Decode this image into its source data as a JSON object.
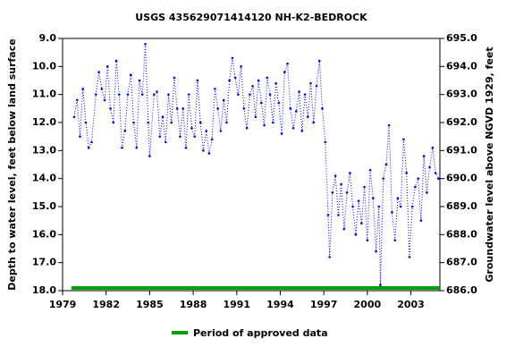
{
  "chart_data": {
    "type": "scatter",
    "title": "USGS 435629071414120 NH-K2-BEDROCK",
    "y_label": "Depth to water level, feet below land surface",
    "y2_label": "Groundwater level above NGVD 1929, feet",
    "xlim": [
      1979,
      2005
    ],
    "xticks": [
      1979,
      1982,
      1985,
      1988,
      1991,
      1994,
      1997,
      2000,
      2003
    ],
    "ylim": [
      18,
      9
    ],
    "yticks": [
      {
        "value": 9,
        "label": "9.0"
      },
      {
        "value": 10,
        "label": "10.0"
      },
      {
        "value": 11,
        "label": "11.0"
      },
      {
        "value": 12,
        "label": "12.0"
      },
      {
        "value": 13,
        "label": "13.0"
      },
      {
        "value": 14,
        "label": "14.0"
      },
      {
        "value": 15,
        "label": "15.0"
      },
      {
        "value": 16,
        "label": "16.0"
      },
      {
        "value": 17,
        "label": "17.0"
      },
      {
        "value": 18,
        "label": "18.0"
      }
    ],
    "y2lim": [
      686,
      695
    ],
    "y2ticks": [
      {
        "value": 695,
        "label": "695.0"
      },
      {
        "value": 694,
        "label": "694.0"
      },
      {
        "value": 693,
        "label": "693.0"
      },
      {
        "value": 692,
        "label": "692.0"
      },
      {
        "value": 691,
        "label": "691.0"
      },
      {
        "value": 690,
        "label": "690.0"
      },
      {
        "value": 689,
        "label": "689.0"
      },
      {
        "value": 688,
        "label": "688.0"
      },
      {
        "value": 687,
        "label": "687.0"
      },
      {
        "value": 686,
        "label": "686.0"
      }
    ],
    "series": [
      {
        "name": "Depth to water level",
        "color": "#0000ff",
        "x": [
          1979.8,
          1980.0,
          1980.2,
          1980.4,
          1980.6,
          1980.8,
          1981.0,
          1981.3,
          1981.5,
          1981.7,
          1981.9,
          1982.1,
          1982.3,
          1982.5,
          1982.7,
          1982.9,
          1983.1,
          1983.3,
          1983.5,
          1983.7,
          1983.9,
          1984.1,
          1984.3,
          1984.5,
          1984.7,
          1984.9,
          1985.0,
          1985.3,
          1985.5,
          1985.7,
          1985.9,
          1986.1,
          1986.3,
          1986.5,
          1986.7,
          1986.9,
          1987.1,
          1987.3,
          1987.5,
          1987.7,
          1987.9,
          1988.1,
          1988.3,
          1988.5,
          1988.7,
          1988.9,
          1989.1,
          1989.3,
          1989.5,
          1989.7,
          1989.9,
          1990.1,
          1990.3,
          1990.5,
          1990.7,
          1990.9,
          1991.1,
          1991.3,
          1991.5,
          1991.7,
          1991.9,
          1992.1,
          1992.3,
          1992.5,
          1992.7,
          1992.9,
          1993.1,
          1993.3,
          1993.5,
          1993.7,
          1993.9,
          1994.1,
          1994.3,
          1994.5,
          1994.7,
          1994.9,
          1995.1,
          1995.3,
          1995.5,
          1995.7,
          1995.9,
          1996.1,
          1996.3,
          1996.5,
          1996.7,
          1996.9,
          1997.1,
          1997.3,
          1997.4,
          1997.6,
          1997.8,
          1998.0,
          1998.2,
          1998.4,
          1998.6,
          1998.8,
          1999.0,
          1999.2,
          1999.4,
          1999.6,
          1999.8,
          2000.0,
          2000.2,
          2000.4,
          2000.6,
          2000.8,
          2000.9,
          2001.1,
          2001.3,
          2001.5,
          2001.7,
          2001.9,
          2002.1,
          2002.3,
          2002.5,
          2002.7,
          2002.9,
          2003.1,
          2003.3,
          2003.5,
          2003.7,
          2003.9,
          2004.1,
          2004.3,
          2004.5,
          2004.7,
          2004.9
        ],
        "values": [
          11.8,
          11.2,
          12.5,
          10.8,
          12.0,
          12.9,
          12.7,
          11.0,
          10.2,
          10.8,
          11.2,
          10.0,
          11.5,
          12.0,
          9.8,
          11.0,
          12.9,
          12.3,
          11.0,
          10.3,
          12.0,
          12.9,
          10.5,
          11.0,
          9.2,
          12.0,
          13.2,
          11.0,
          10.9,
          12.5,
          11.8,
          12.7,
          11.0,
          12.0,
          10.4,
          11.5,
          12.5,
          11.5,
          12.9,
          11.0,
          12.2,
          12.5,
          10.5,
          12.0,
          13.0,
          12.3,
          13.1,
          12.6,
          10.8,
          11.5,
          12.3,
          11.2,
          12.0,
          10.5,
          9.7,
          10.4,
          11.0,
          10.0,
          11.5,
          12.2,
          11.0,
          10.7,
          11.8,
          10.5,
          11.3,
          12.1,
          10.4,
          11.0,
          12.0,
          10.6,
          11.3,
          12.4,
          10.2,
          9.9,
          11.5,
          12.2,
          11.6,
          10.9,
          12.3,
          11.0,
          11.8,
          10.6,
          12.0,
          10.7,
          9.8,
          11.5,
          12.7,
          15.3,
          16.8,
          14.5,
          13.9,
          15.3,
          14.2,
          15.8,
          14.5,
          13.8,
          15.0,
          16.0,
          14.8,
          15.6,
          14.3,
          16.2,
          13.7,
          14.7,
          16.6,
          15.0,
          17.8,
          14.0,
          13.5,
          12.1,
          15.2,
          16.2,
          14.7,
          15.0,
          12.6,
          13.8,
          16.8,
          15.0,
          14.3,
          14.0,
          15.5,
          13.2,
          14.5,
          13.6,
          12.9,
          13.8,
          14.0
        ]
      }
    ],
    "approved_period": {
      "name": "Period of approved data",
      "color": "#00a000",
      "x": [
        1979.6,
        2005
      ]
    }
  }
}
